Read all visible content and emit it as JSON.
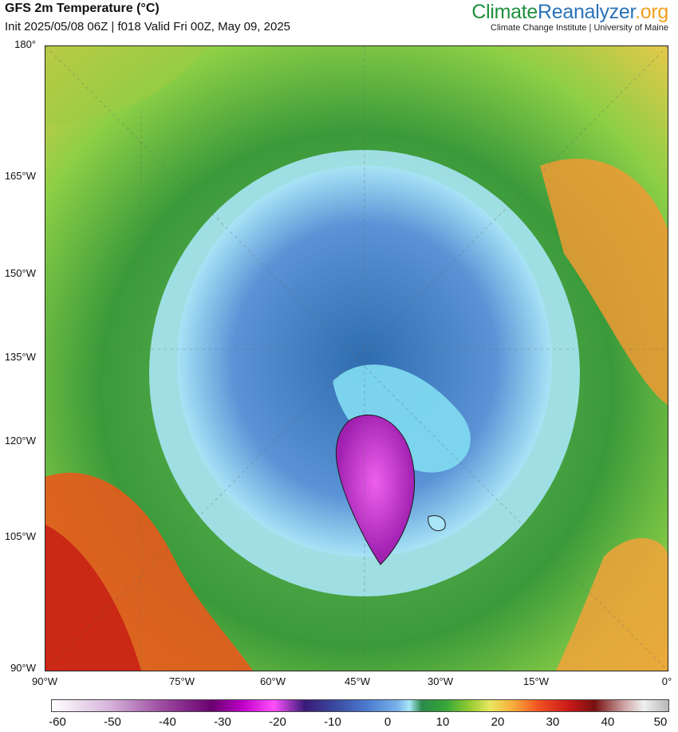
{
  "header": {
    "title": "GFS 2m Temperature (°C)",
    "subtitle": "Init 2025/05/08 06Z | f018 Valid Fri 00Z, May 09, 2025"
  },
  "brand": {
    "part1": "Climate",
    "part2": "Reanalyzer",
    "part3": ".org",
    "tagline": "Climate Change Institute | University of Maine"
  },
  "axes": {
    "left_labels": [
      "180°",
      "165°W",
      "150°W",
      "135°W",
      "120°W",
      "105°W",
      "90°W"
    ],
    "bottom_labels": [
      "90°W",
      "75°W",
      "60°W",
      "45°W",
      "30°W",
      "15°W",
      "0°"
    ]
  },
  "colorbar": {
    "ticks": [
      "-60",
      "-50",
      "-40",
      "-30",
      "-20",
      "-10",
      "0",
      "10",
      "20",
      "30",
      "40",
      "50"
    ]
  },
  "colors": {
    "green": "#1f8f3c",
    "blue": "#2a72b8",
    "orange": "#f0a020",
    "greenland": "#d23cd6",
    "arctic": "#4a7ad0"
  }
}
